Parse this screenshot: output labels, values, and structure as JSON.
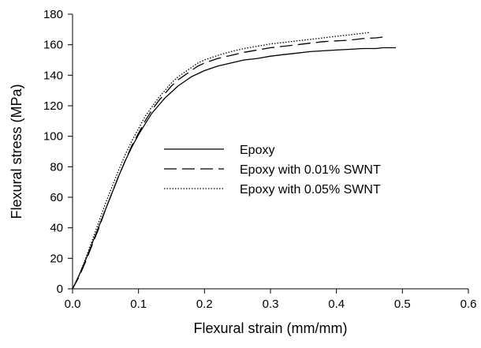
{
  "chart_data": {
    "type": "line",
    "xlabel": "Flexural strain (mm/mm)",
    "ylabel": "Flexural stress (MPa)",
    "xlim": [
      0,
      0.6
    ],
    "ylim": [
      0,
      180
    ],
    "x_ticks": [
      "0.0",
      "0.1",
      "0.2",
      "0.3",
      "0.4",
      "0.5",
      "0.6"
    ],
    "y_ticks": [
      "0",
      "20",
      "40",
      "60",
      "80",
      "100",
      "120",
      "140",
      "160",
      "180"
    ],
    "grid": false,
    "legend_position": "center",
    "series": [
      {
        "name": "Epoxy",
        "style": "solid",
        "x": [
          0,
          0.01,
          0.02,
          0.03,
          0.04,
          0.05,
          0.06,
          0.07,
          0.08,
          0.09,
          0.1,
          0.11,
          0.12,
          0.13,
          0.14,
          0.15,
          0.16,
          0.17,
          0.18,
          0.19,
          0.2,
          0.22,
          0.24,
          0.26,
          0.28,
          0.3,
          0.32,
          0.34,
          0.36,
          0.38,
          0.4,
          0.42,
          0.44,
          0.46,
          0.47,
          0.49
        ],
        "y": [
          0,
          9,
          19,
          30,
          41,
          52,
          63,
          74,
          84,
          93,
          101,
          108,
          115,
          120,
          125,
          129,
          133,
          136,
          139,
          141,
          143,
          146,
          148,
          150,
          151,
          152.5,
          153.5,
          154.5,
          155.5,
          156,
          156.5,
          157,
          157.5,
          157.5,
          158,
          158
        ]
      },
      {
        "name": "Epoxy with 0.01% SWNT",
        "style": "dashed",
        "x": [
          0,
          0.01,
          0.02,
          0.03,
          0.04,
          0.05,
          0.06,
          0.07,
          0.08,
          0.09,
          0.1,
          0.11,
          0.12,
          0.13,
          0.14,
          0.15,
          0.16,
          0.17,
          0.18,
          0.19,
          0.2,
          0.22,
          0.24,
          0.26,
          0.28,
          0.3,
          0.32,
          0.34,
          0.36,
          0.38,
          0.4,
          0.42,
          0.44,
          0.46,
          0.47
        ],
        "y": [
          0,
          8,
          18,
          29,
          40,
          52,
          63,
          74,
          84,
          94,
          102,
          110,
          117,
          123,
          128,
          133,
          137,
          140,
          143,
          146,
          148,
          151,
          153,
          155,
          156.5,
          158,
          159,
          160,
          161,
          162,
          162.5,
          163,
          164,
          164.5,
          165
        ]
      },
      {
        "name": "Epoxy with 0.05% SWNT",
        "style": "dotted",
        "x": [
          0,
          0.01,
          0.02,
          0.03,
          0.04,
          0.05,
          0.06,
          0.07,
          0.08,
          0.09,
          0.1,
          0.11,
          0.12,
          0.13,
          0.14,
          0.15,
          0.16,
          0.17,
          0.18,
          0.19,
          0.2,
          0.22,
          0.24,
          0.26,
          0.28,
          0.3,
          0.32,
          0.34,
          0.36,
          0.38,
          0.4,
          0.42,
          0.44,
          0.45
        ],
        "y": [
          0,
          9,
          20,
          32,
          44,
          56,
          67,
          78,
          88,
          97,
          105,
          113,
          119,
          125,
          130,
          135,
          139,
          142,
          145,
          148,
          150,
          153,
          155.5,
          157.5,
          159,
          160.5,
          161.5,
          162.5,
          163.5,
          164.5,
          165.5,
          166.5,
          167.5,
          168
        ]
      }
    ]
  }
}
